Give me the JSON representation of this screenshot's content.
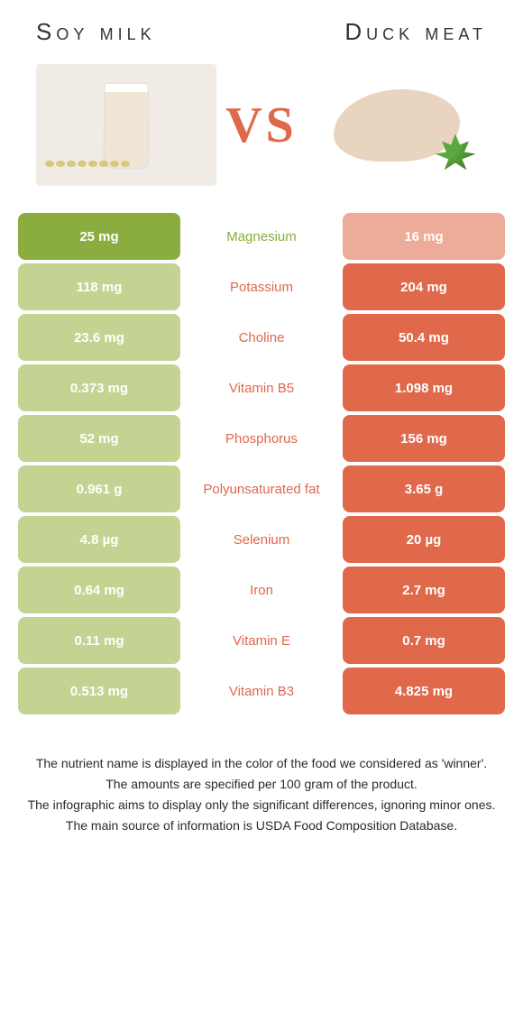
{
  "colors": {
    "left": "#8bad3f",
    "right": "#e0684b",
    "leftFaded": "#c3d492",
    "rightFaded": "#edab99",
    "leftText": "#8bad3f",
    "rightText": "#e0684b",
    "vsText": "#e0684b",
    "titleText": "#333333"
  },
  "header": {
    "leftTitle": "Soy milk",
    "rightTitle": "Duck meat",
    "vs": "VS"
  },
  "rows": [
    {
      "name": "Magnesium",
      "left": "25 mg",
      "right": "16 mg",
      "winner": "left"
    },
    {
      "name": "Potassium",
      "left": "118 mg",
      "right": "204 mg",
      "winner": "right"
    },
    {
      "name": "Choline",
      "left": "23.6 mg",
      "right": "50.4 mg",
      "winner": "right"
    },
    {
      "name": "Vitamin B5",
      "left": "0.373 mg",
      "right": "1.098 mg",
      "winner": "right"
    },
    {
      "name": "Phosphorus",
      "left": "52 mg",
      "right": "156 mg",
      "winner": "right"
    },
    {
      "name": "Polyunsaturated fat",
      "left": "0.961 g",
      "right": "3.65 g",
      "winner": "right"
    },
    {
      "name": "Selenium",
      "left": "4.8 µg",
      "right": "20 µg",
      "winner": "right"
    },
    {
      "name": "Iron",
      "left": "0.64 mg",
      "right": "2.7 mg",
      "winner": "right"
    },
    {
      "name": "Vitamin E",
      "left": "0.11 mg",
      "right": "0.7 mg",
      "winner": "right"
    },
    {
      "name": "Vitamin B3",
      "left": "0.513 mg",
      "right": "4.825 mg",
      "winner": "right"
    }
  ],
  "footnotes": [
    "The nutrient name is displayed in the color of the food we considered as 'winner'.",
    "The amounts are specified per 100 gram of the product.",
    "The infographic aims to display only the significant differences, ignoring minor ones.",
    "The main source of information is USDA Food Composition Database."
  ]
}
